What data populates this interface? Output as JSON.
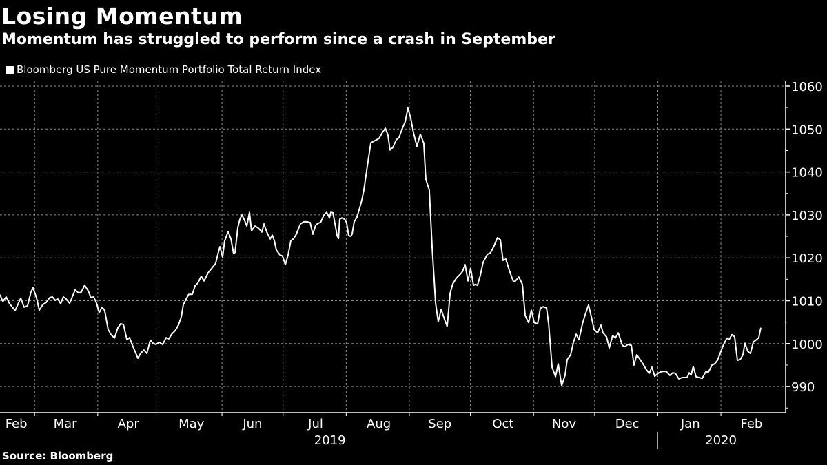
{
  "chart_data": {
    "type": "line",
    "title": "Losing Momentum",
    "subtitle": "Momentum has struggled to perform since a crash in September",
    "source": "Source: Bloomberg",
    "legend": [
      {
        "name": "Bloomberg US Pure Momentum Portfolio Total Return Index",
        "color": "#ffffff"
      }
    ],
    "legend_position": "top-left",
    "xlabel": "",
    "ylabel": "",
    "x_start_date": "2019-02-12",
    "x_unit": "days since x_start_date",
    "xlim": [
      0,
      385
    ],
    "ylim": [
      984,
      1062
    ],
    "y_axis_side": "right",
    "grid": true,
    "yticks": [
      990,
      1000,
      1010,
      1020,
      1030,
      1040,
      1050,
      1060
    ],
    "ytick_labels": [
      "990",
      "1000",
      "1010",
      "1020",
      "1030",
      "1040",
      "1050",
      "1060"
    ],
    "month_boundaries": [
      17,
      48,
      78,
      109,
      139,
      170,
      201,
      231,
      262,
      292,
      323,
      354
    ],
    "xtick_labels": [
      {
        "label": "Feb",
        "center": 8
      },
      {
        "label": "Mar",
        "center": 32
      },
      {
        "label": "Apr",
        "center": 63
      },
      {
        "label": "May",
        "center": 94
      },
      {
        "label": "Jun",
        "center": 124
      },
      {
        "label": "Jul",
        "center": 155
      },
      {
        "label": "Aug",
        "center": 186
      },
      {
        "label": "Sep",
        "center": 216
      },
      {
        "label": "Oct",
        "center": 247
      },
      {
        "label": "Nov",
        "center": 277
      },
      {
        "label": "Dec",
        "center": 308
      },
      {
        "label": "Jan",
        "center": 339
      },
      {
        "label": "Feb",
        "center": 369
      }
    ],
    "year_labels": [
      {
        "label": "2019",
        "center": 162
      },
      {
        "label": "2020",
        "center": 354
      }
    ],
    "year_divider": 323,
    "series": [
      {
        "name": "Bloomberg US Pure Momentum Portfolio Total Return Index",
        "color": "#ffffff",
        "x": [
          0,
          1.4,
          3.0,
          4.7,
          7.4,
          10.2,
          11.8,
          13.5,
          15.2,
          16.2,
          17.9,
          19.3,
          21.0,
          22.7,
          24.4,
          25.7,
          27.1,
          28.4,
          29.8,
          31.1,
          32.5,
          34.2,
          36.9,
          38.6,
          39.9,
          41.6,
          43.3,
          44.7,
          46.0,
          47.4,
          48.7,
          50.1,
          51.4,
          53.1,
          54.5,
          56.2,
          57.9,
          59.2,
          60.6,
          62.3,
          63.6,
          65.3,
          67.7,
          69.0,
          70.7,
          72.1,
          73.8,
          75.1,
          76.5,
          78.2,
          79.9,
          81.6,
          82.9,
          84.3,
          86.0,
          87.6,
          89.0,
          90.0,
          91.4,
          92.7,
          94.4,
          95.8,
          97.1,
          98.8,
          100.2,
          102.2,
          104.9,
          105.9,
          106.9,
          108.0,
          109.3,
          110.3,
          112.0,
          113.4,
          114.7,
          115.4,
          116.8,
          117.8,
          118.8,
          120.1,
          121.2,
          122.5,
          123.5,
          125.2,
          126.9,
          128.6,
          129.6,
          131.0,
          132.7,
          133.7,
          134.7,
          135.7,
          137.4,
          138.7,
          140.1,
          141.5,
          142.8,
          144.2,
          145.5,
          147.5,
          149.2,
          150.9,
          152.3,
          153.6,
          155.0,
          156.3,
          157.4,
          159.1,
          160.4,
          161.8,
          162.4,
          163.5,
          164.5,
          165.5,
          166.2,
          166.8,
          167.9,
          169.2,
          170.2,
          171.2,
          172.3,
          172.9,
          173.9,
          175.3,
          176.3,
          177.7,
          178.7,
          180.4,
          182.1,
          184.1,
          186.1,
          187.8,
          189.2,
          190.5,
          191.5,
          192.9,
          194.6,
          195.9,
          197.6,
          199.0,
          200.3,
          201.7,
          203.0,
          204.7,
          206.4,
          208.1,
          209.1,
          210.8,
          212.2,
          213.9,
          215.2,
          216.6,
          218.3,
          219.6,
          221.0,
          222.3,
          224.0,
          225.7,
          227.1,
          228.4,
          229.8,
          231.1,
          232.5,
          233.5,
          234.5,
          235.9,
          237.2,
          239.3,
          240.9,
          242.6,
          244.3,
          245.7,
          247.0,
          248.4,
          250.1,
          252.1,
          253.1,
          254.8,
          256.5,
          257.9,
          259.6,
          260.9,
          262.3,
          264.0,
          265.3,
          266.7,
          268.4,
          269.4,
          271.1,
          272.8,
          274.1,
          275.8,
          277.5,
          278.5,
          280.2,
          281.6,
          282.9,
          284.3,
          286.0,
          287.3,
          289.0,
          290.4,
          291.7,
          293.4,
          295.1,
          296.1,
          297.8,
          299.2,
          300.8,
          302.2,
          303.6,
          305.6,
          306.9,
          308.3,
          310.0,
          311.3,
          312.7,
          315.7,
          317.4,
          318.8,
          320.1,
          321.5,
          323.2,
          324.9,
          327.2,
          328.9,
          330.3,
          331.6,
          333.3,
          335.0,
          337.4,
          338.4,
          339.4,
          340.4,
          341.8,
          344.8,
          346.5,
          347.9,
          349.6,
          350.9,
          352.3,
          353.6,
          355.3,
          357.0,
          358.0,
          359.4,
          360.7,
          362.1,
          363.5,
          364.8,
          365.8,
          367.2,
          368.5,
          369.9,
          371.2,
          372.6,
          373.6
        ],
        "values": [
          1011.4,
          1009.8,
          1010.9,
          1009.3,
          1007.7,
          1010.6,
          1008.5,
          1008.8,
          1012.0,
          1013.0,
          1010.7,
          1007.8,
          1009.1,
          1009.6,
          1010.7,
          1010.9,
          1010.1,
          1010.4,
          1009.3,
          1010.9,
          1010.4,
          1009.4,
          1012.5,
          1011.8,
          1012.0,
          1013.6,
          1012.3,
          1010.7,
          1010.9,
          1009.4,
          1007.2,
          1008.5,
          1007.7,
          1003.3,
          1002.1,
          1001.3,
          1003.7,
          1004.6,
          1004.5,
          1000.9,
          1001.4,
          999.3,
          996.6,
          997.7,
          998.5,
          997.7,
          1000.8,
          1000.1,
          999.8,
          1000.3,
          999.8,
          1001.4,
          1001.1,
          1002.2,
          1003.0,
          1004.3,
          1006.2,
          1009.0,
          1010.4,
          1011.5,
          1011.5,
          1013.5,
          1014.1,
          1015.7,
          1014.6,
          1016.5,
          1018.1,
          1018.7,
          1020.7,
          1022.6,
          1020.2,
          1023.9,
          1026.1,
          1024.4,
          1021.0,
          1021.2,
          1027.1,
          1029.0,
          1030.0,
          1028.7,
          1027.4,
          1030.6,
          1026.3,
          1027.4,
          1026.9,
          1026.0,
          1027.9,
          1026.0,
          1024.4,
          1025.3,
          1024.0,
          1021.8,
          1020.7,
          1020.4,
          1018.4,
          1020.7,
          1024.0,
          1024.5,
          1025.5,
          1027.9,
          1028.4,
          1028.4,
          1028.2,
          1025.5,
          1027.6,
          1028.1,
          1028.2,
          1030.0,
          1030.6,
          1029.3,
          1030.6,
          1030.5,
          1027.9,
          1025.2,
          1024.5,
          1029.0,
          1029.3,
          1029.0,
          1028.2,
          1025.2,
          1025.0,
          1025.5,
          1028.4,
          1029.5,
          1031.1,
          1033.5,
          1035.9,
          1041.5,
          1046.8,
          1047.3,
          1047.8,
          1049.2,
          1050.2,
          1048.6,
          1045.1,
          1045.7,
          1047.5,
          1048.0,
          1050.2,
          1051.7,
          1054.9,
          1052.5,
          1049.2,
          1046.0,
          1048.8,
          1046.7,
          1038.3,
          1035.8,
          1022.3,
          1009.4,
          1005.1,
          1008.0,
          1005.6,
          1004.0,
          1011.7,
          1013.9,
          1015.2,
          1016.0,
          1016.8,
          1018.4,
          1014.6,
          1017.5,
          1013.6,
          1013.8,
          1013.6,
          1016.0,
          1018.9,
          1020.8,
          1021.2,
          1022.8,
          1024.7,
          1024.2,
          1019.4,
          1019.7,
          1017.1,
          1014.4,
          1014.6,
          1015.5,
          1013.8,
          1006.5,
          1004.9,
          1007.8,
          1004.9,
          1004.6,
          1008.2,
          1008.6,
          1008.3,
          1004.6,
          994.5,
          992.3,
          995.3,
          990.2,
          992.7,
          996.3,
          997.4,
          1000.3,
          1002.2,
          1000.9,
          1004.6,
          1006.7,
          1009.0,
          1006.2,
          1003.3,
          1002.5,
          1004.3,
          1002.5,
          1001.6,
          999.0,
          1001.9,
          1001.3,
          1002.5,
          999.6,
          999.3,
          999.8,
          999.6,
          995.0,
          997.4,
          995.3,
          993.9,
          993.1,
          994.5,
          992.4,
          993.1,
          993.5,
          993.5,
          992.6,
          993.2,
          993.1,
          991.8,
          992.1,
          992.1,
          993.2,
          992.7,
          994.7,
          992.3,
          991.9,
          993.4,
          993.4,
          995.0,
          995.3,
          996.1,
          997.7,
          999.8,
          1001.3,
          1000.9,
          1002.1,
          1001.6,
          996.1,
          996.3,
          997.4,
          1000.1,
          998.2,
          997.7,
          1000.4,
          1000.8,
          1001.4,
          1003.7
        ]
      }
    ]
  }
}
